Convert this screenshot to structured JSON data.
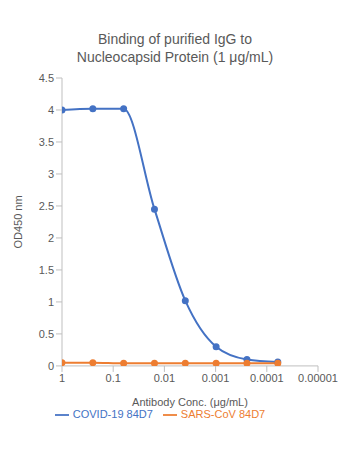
{
  "chart_data": {
    "type": "line",
    "title": "Binding of purified IgG to\nNucleocapsid Protein (1 μg/mL)",
    "x_label": "Antibody Conc. (μg/mL)",
    "y_label": "OD450 nm",
    "x": [
      1,
      0.25,
      0.0625,
      0.015625,
      0.00390625,
      0.0009765625,
      0.000244140625,
      6.103515625e-05
    ],
    "series": [
      {
        "name": "COVID-19 84D7",
        "color": "#4472c4",
        "values": [
          4.0,
          4.02,
          4.02,
          2.45,
          1.02,
          0.3,
          0.1,
          0.06
        ],
        "marker": "circle",
        "line_style": "solid"
      },
      {
        "name": "SARS-CoV 84D7",
        "color": "#ed7d31",
        "values": [
          0.05,
          0.05,
          0.04,
          0.04,
          0.04,
          0.04,
          0.04,
          0.04
        ],
        "marker": "circle",
        "line_style": "solid"
      }
    ],
    "xlim": [
      1,
      1e-05
    ],
    "xticks": [
      1,
      0.1,
      0.01,
      0.001,
      0.0001,
      1e-05
    ],
    "ylim": [
      0,
      4.5
    ],
    "yticks": [
      0,
      0.5,
      1,
      1.5,
      2,
      2.5,
      3,
      3.5,
      4,
      4.5
    ],
    "log": "x",
    "grid": false,
    "legend": "bottom"
  }
}
